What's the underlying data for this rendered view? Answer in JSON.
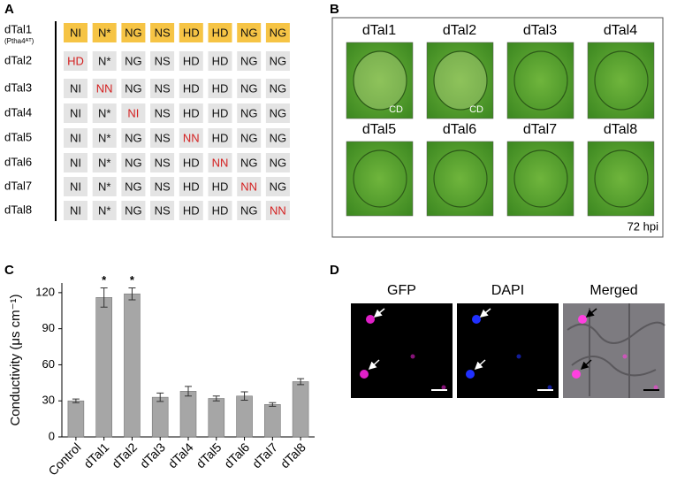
{
  "panel_a": {
    "label": "A",
    "cell_color": "#e4e4e4",
    "reference_color": "#f6c445",
    "changed_color": "#d42020",
    "rows": [
      {
        "name": "dTal1",
        "note": "(Ptha4ᴬᵀ)",
        "reference": true,
        "rvds": [
          "NI",
          "N*",
          "NG",
          "NS",
          "HD",
          "HD",
          "NG",
          "NG"
        ]
      },
      {
        "name": "dTal2",
        "changed": 0,
        "rvds": [
          "HD",
          "N*",
          "NG",
          "NS",
          "HD",
          "HD",
          "NG",
          "NG"
        ]
      },
      {
        "name": "dTal3",
        "changed": 1,
        "rvds": [
          "NI",
          "NN",
          "NG",
          "NS",
          "HD",
          "HD",
          "NG",
          "NG"
        ]
      },
      {
        "name": "dTal4",
        "changed": 2,
        "rvds": [
          "NI",
          "N*",
          "NI",
          "NS",
          "HD",
          "HD",
          "NG",
          "NG"
        ]
      },
      {
        "name": "dTal5",
        "changed": 4,
        "rvds": [
          "NI",
          "N*",
          "NG",
          "NS",
          "NN",
          "HD",
          "NG",
          "NG"
        ]
      },
      {
        "name": "dTal6",
        "changed": 5,
        "rvds": [
          "NI",
          "N*",
          "NG",
          "NS",
          "HD",
          "NN",
          "NG",
          "NG"
        ]
      },
      {
        "name": "dTal7",
        "changed": 6,
        "rvds": [
          "NI",
          "N*",
          "NG",
          "NS",
          "HD",
          "HD",
          "NN",
          "NG"
        ]
      },
      {
        "name": "dTal8",
        "changed": 7,
        "rvds": [
          "NI",
          "N*",
          "NG",
          "NS",
          "HD",
          "HD",
          "NG",
          "NN"
        ]
      }
    ]
  },
  "panel_b": {
    "label": "B",
    "images": [
      {
        "title": "dTal1",
        "note": "CD"
      },
      {
        "title": "dTal2",
        "note": "CD"
      },
      {
        "title": "dTal3"
      },
      {
        "title": "dTal4"
      },
      {
        "title": "dTal5"
      },
      {
        "title": "dTal6"
      },
      {
        "title": "dTal7"
      },
      {
        "title": "dTal8"
      }
    ],
    "time": "72 hpi"
  },
  "panel_c": {
    "label": "C",
    "chart_data": {
      "type": "bar",
      "y_label": "Conductivity (μs cm⁻¹)",
      "categories": [
        "Control",
        "dTal1",
        "dTal2",
        "dTal3",
        "dTal4",
        "dTal5",
        "dTal6",
        "dTal7",
        "dTal8"
      ],
      "values": [
        30,
        116,
        119,
        33,
        38,
        32,
        34,
        27,
        46
      ],
      "errors": [
        1.5,
        8,
        5,
        3.5,
        4,
        2,
        3.5,
        1.5,
        2.5
      ],
      "markers": [
        null,
        "*",
        "*",
        null,
        null,
        null,
        null,
        null,
        null
      ],
      "color": "#a6a6a6",
      "ylim": [
        0,
        128
      ],
      "yticks": [
        0,
        30,
        60,
        90,
        120
      ]
    }
  },
  "panel_d": {
    "label": "D",
    "images": [
      "GFP",
      "DAPI",
      "Merged"
    ]
  }
}
